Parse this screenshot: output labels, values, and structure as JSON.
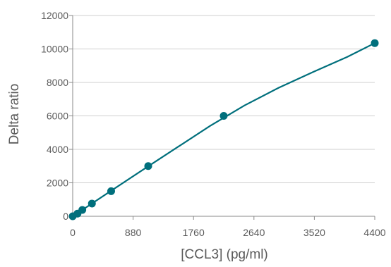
{
  "chart_data": {
    "type": "scatter",
    "xlabel": "[CCL3] (pg/ml)",
    "ylabel": "Delta ratio",
    "xlim": [
      0,
      4400
    ],
    "ylim": [
      0,
      12000
    ],
    "x_ticks": [
      "0",
      "880",
      "1760",
      "2640",
      "3520",
      "4400"
    ],
    "y_ticks": [
      "0",
      "2000",
      "4000",
      "6000",
      "8000",
      "10000",
      "12000"
    ],
    "grid": "horizontal",
    "series": [
      {
        "points": [
          {
            "x": 0,
            "y": 0
          },
          {
            "x": 70,
            "y": 160
          },
          {
            "x": 140,
            "y": 380
          },
          {
            "x": 280,
            "y": 760
          },
          {
            "x": 560,
            "y": 1500
          },
          {
            "x": 1100,
            "y": 3000
          },
          {
            "x": 2200,
            "y": 6000
          },
          {
            "x": 4400,
            "y": 10350
          }
        ],
        "fit_curve": [
          {
            "x": 0,
            "y": 0
          },
          {
            "x": 500,
            "y": 1360
          },
          {
            "x": 1000,
            "y": 2720
          },
          {
            "x": 1500,
            "y": 4060
          },
          {
            "x": 2000,
            "y": 5400
          },
          {
            "x": 2500,
            "y": 6620
          },
          {
            "x": 3000,
            "y": 7680
          },
          {
            "x": 3500,
            "y": 8620
          },
          {
            "x": 4000,
            "y": 9530
          },
          {
            "x": 4400,
            "y": 10350
          }
        ]
      }
    ],
    "colors": {
      "series": "#006f7c",
      "axis": "#8a8a8a",
      "grid": "#cfcfcf",
      "text": "#5a5a5a"
    }
  }
}
